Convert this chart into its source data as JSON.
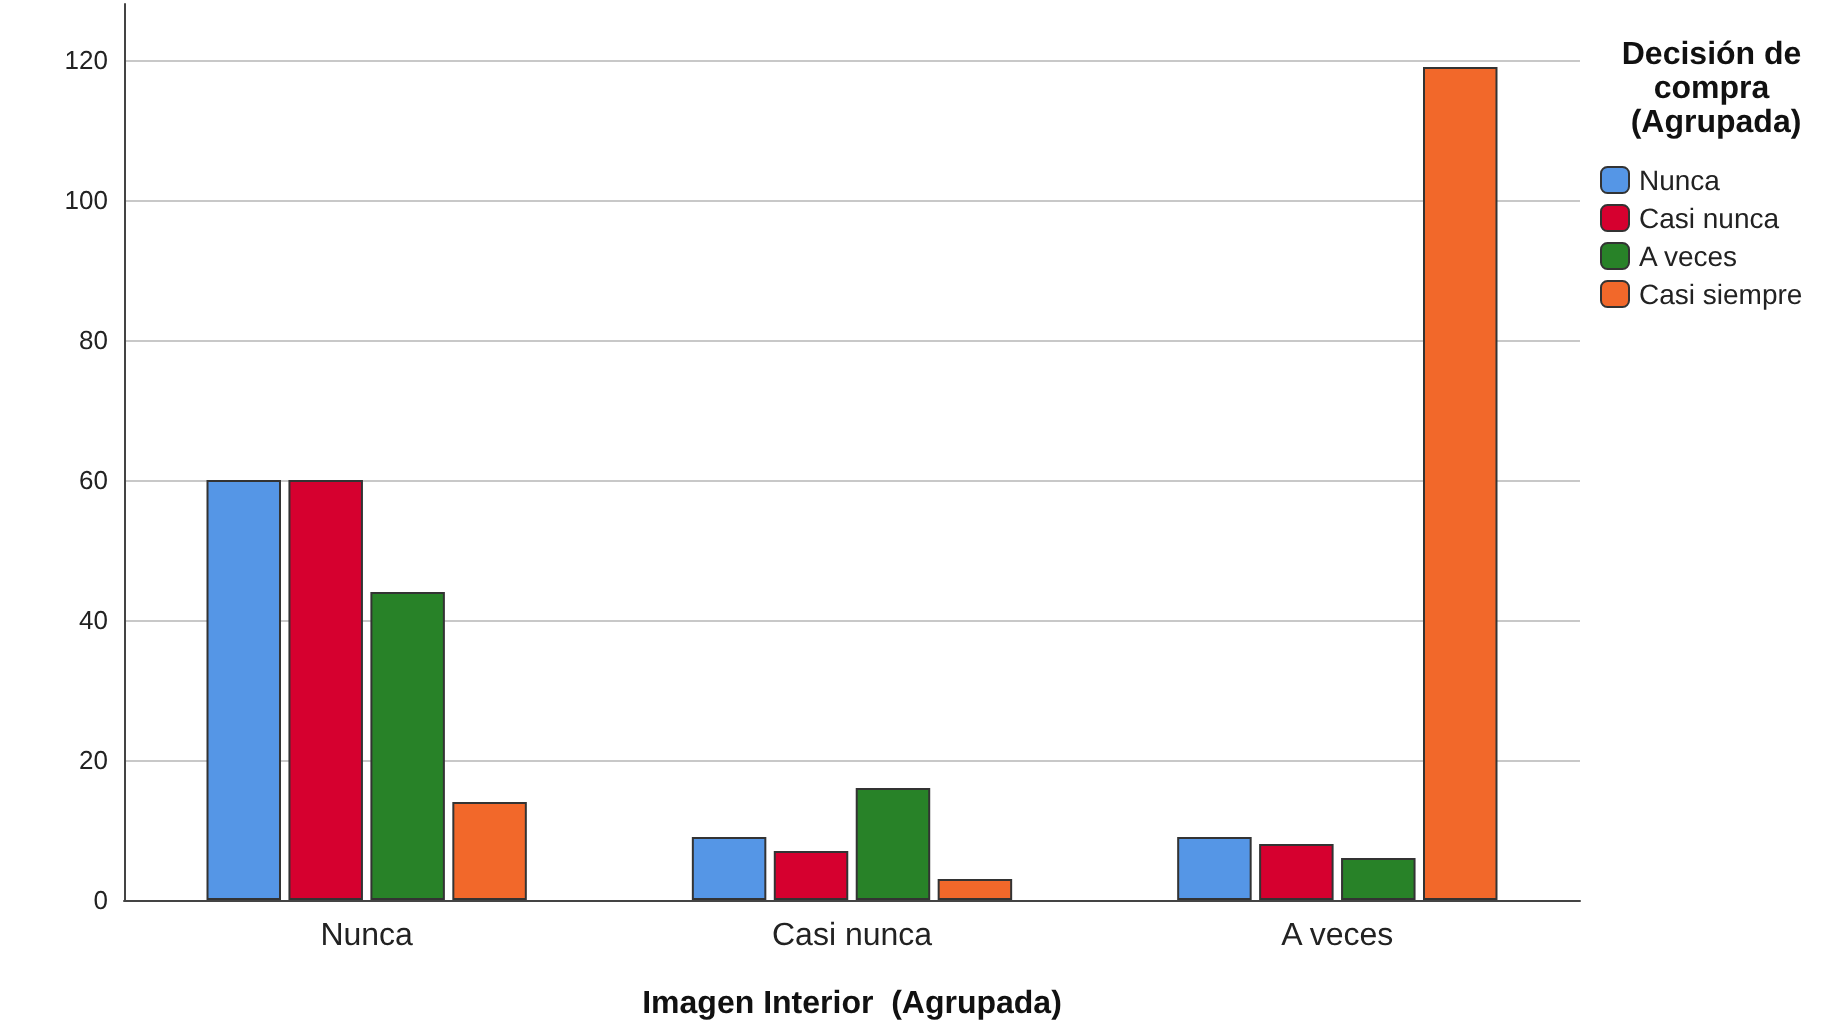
{
  "chart_data": {
    "type": "bar",
    "xlabel": "Imagen Interior  (Agrupada)",
    "legend_title": "Decisión de compra (Agrupada)",
    "categories": [
      "Nunca",
      "Casi nunca",
      "A veces"
    ],
    "series": [
      {
        "name": "Nunca",
        "color": "#5596e6",
        "values": [
          60,
          9,
          9
        ]
      },
      {
        "name": "Casi nunca",
        "color": "#d6002f",
        "values": [
          60,
          7,
          8
        ]
      },
      {
        "name": "A veces",
        "color": "#288228",
        "values": [
          44,
          16,
          6
        ]
      },
      {
        "name": "Casi siempre",
        "color": "#f2682a",
        "values": [
          14,
          3,
          119
        ]
      }
    ],
    "ylim": [
      0,
      128
    ],
    "yticks": [
      0,
      20,
      40,
      60,
      80,
      100,
      120
    ],
    "grid": "y",
    "legend": "right"
  }
}
